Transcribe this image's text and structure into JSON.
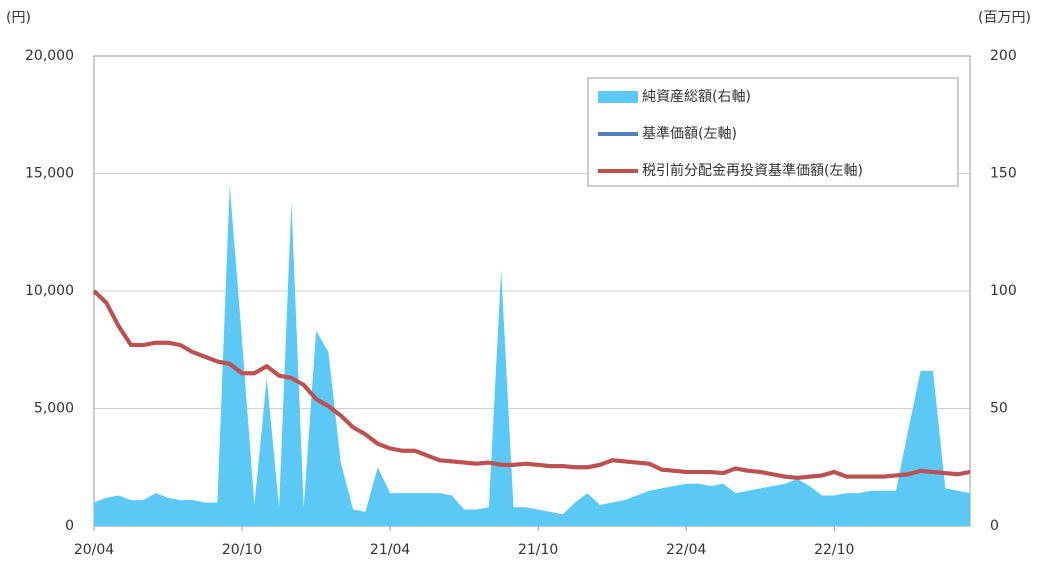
{
  "chart_data": {
    "type": "line",
    "y_unit": "(円)",
    "y2_unit": "(百万円)",
    "categories": [
      "20/04",
      null,
      null,
      null,
      null,
      null,
      null,
      null,
      null,
      null,
      null,
      null,
      "20/10",
      null,
      null,
      null,
      null,
      null,
      null,
      null,
      null,
      null,
      null,
      null,
      "21/04",
      null,
      null,
      null,
      null,
      null,
      null,
      null,
      null,
      null,
      null,
      null,
      "21/10",
      null,
      null,
      null,
      null,
      null,
      null,
      null,
      null,
      null,
      null,
      null,
      "22/04",
      null,
      null,
      null,
      null,
      null,
      null,
      null,
      null,
      null,
      null,
      null,
      "22/10",
      null,
      null,
      null,
      null,
      null,
      null,
      null,
      null,
      null,
      null,
      null
    ],
    "series": [
      {
        "name": "純資産総額(右軸)",
        "color": "#5bc8f5",
        "kind": "area",
        "axis": "y2",
        "values": [
          10,
          12,
          13,
          11,
          11,
          14,
          12,
          11,
          11,
          10,
          10,
          145,
          79,
          9,
          63,
          8,
          138,
          8,
          83,
          74,
          27,
          7,
          6,
          25,
          14,
          14,
          14,
          14,
          14,
          13,
          7,
          7,
          8,
          109,
          8,
          8,
          7,
          6,
          5,
          10,
          14,
          9,
          10,
          11,
          13,
          15,
          16,
          17,
          18,
          18,
          17,
          18,
          14,
          15,
          16,
          17,
          18,
          20,
          17,
          13,
          13,
          14,
          14,
          15,
          15,
          15,
          41,
          66,
          66,
          16,
          15,
          14
        ]
      },
      {
        "name": "基準価額(左軸)",
        "color": "#4f81bd",
        "kind": "line",
        "axis": "y",
        "values": [
          10000,
          9500,
          8500,
          7700,
          7700,
          7800,
          7800,
          7700,
          7400,
          7200,
          7000,
          6900,
          6500,
          6500,
          6800,
          6400,
          6300,
          6000,
          5400,
          5100,
          4700,
          4200,
          3900,
          3500,
          3300,
          3200,
          3200,
          3000,
          2800,
          2750,
          2700,
          2650,
          2700,
          2600,
          2600,
          2650,
          2600,
          2550,
          2550,
          2500,
          2500,
          2600,
          2800,
          2750,
          2700,
          2650,
          2400,
          2350,
          2300,
          2300,
          2300,
          2250,
          2450,
          2350,
          2300,
          2200,
          2100,
          2050,
          2100,
          2150,
          2300,
          2100,
          2100,
          2100,
          2100,
          2150,
          2200,
          2350,
          2300,
          2250,
          2200,
          2300
        ]
      },
      {
        "name": "税引前分配金再投資基準価額(左軸)",
        "color": "#c0504d",
        "kind": "line",
        "axis": "y",
        "values": [
          10000,
          9500,
          8500,
          7700,
          7700,
          7800,
          7800,
          7700,
          7400,
          7200,
          7000,
          6900,
          6500,
          6500,
          6800,
          6400,
          6300,
          6000,
          5400,
          5100,
          4700,
          4200,
          3900,
          3500,
          3300,
          3200,
          3200,
          3000,
          2800,
          2750,
          2700,
          2650,
          2700,
          2600,
          2600,
          2650,
          2600,
          2550,
          2550,
          2500,
          2500,
          2600,
          2800,
          2750,
          2700,
          2650,
          2400,
          2350,
          2300,
          2300,
          2300,
          2250,
          2450,
          2350,
          2300,
          2200,
          2100,
          2050,
          2100,
          2150,
          2300,
          2100,
          2100,
          2100,
          2100,
          2150,
          2200,
          2350,
          2300,
          2250,
          2200,
          2300
        ]
      }
    ],
    "ylim": [
      0,
      20000
    ],
    "yticks": [
      0,
      {
        "value": 5000,
        "label": "5,000"
      },
      {
        "value": 10000,
        "label": "10,000"
      },
      {
        "value": 15000,
        "label": "15,000"
      },
      {
        "value": 20000,
        "label": "20,000"
      }
    ],
    "y2lim": [
      0,
      200
    ],
    "y2ticks": [
      0,
      50,
      100,
      150,
      200
    ],
    "grid": true,
    "legend": "top-right"
  }
}
